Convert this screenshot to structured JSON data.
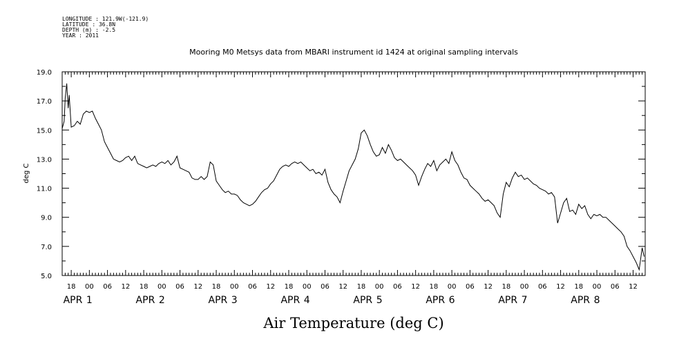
{
  "header": {
    "meta_lines": [
      "LONGITUDE : 121.9W(-121.9)",
      "LATITUDE : 36.8N",
      "DEPTH (m) : -2.5",
      "YEAR : 2011"
    ]
  },
  "chart_data": {
    "type": "line",
    "title": "Mooring M0 Metsys data from MBARI instrument id 1424 at original sampling intervals",
    "xlabel": "Air Temperature (deg C)",
    "ylabel": "deg C",
    "ylim": [
      5.0,
      19.0
    ],
    "yticks": [
      "5.0",
      "7.0",
      "9.0",
      "11.0",
      "13.0",
      "15.0",
      "17.0",
      "19.0"
    ],
    "xlim": [
      "2011-03-31T15:00",
      "2011-04-08T16:00"
    ],
    "hour_ticks": [
      {
        "t": "2011-03-31T18:00",
        "label": "18"
      },
      {
        "t": "2011-04-01T00:00",
        "label": "00"
      },
      {
        "t": "2011-04-01T06:00",
        "label": "06"
      },
      {
        "t": "2011-04-01T12:00",
        "label": "12"
      },
      {
        "t": "2011-04-01T18:00",
        "label": "18"
      },
      {
        "t": "2011-04-02T00:00",
        "label": "00"
      },
      {
        "t": "2011-04-02T06:00",
        "label": "06"
      },
      {
        "t": "2011-04-02T12:00",
        "label": "12"
      },
      {
        "t": "2011-04-02T18:00",
        "label": "18"
      },
      {
        "t": "2011-04-03T00:00",
        "label": "00"
      },
      {
        "t": "2011-04-03T06:00",
        "label": "06"
      },
      {
        "t": "2011-04-03T12:00",
        "label": "12"
      },
      {
        "t": "2011-04-03T18:00",
        "label": "18"
      },
      {
        "t": "2011-04-04T00:00",
        "label": "00"
      },
      {
        "t": "2011-04-04T06:00",
        "label": "06"
      },
      {
        "t": "2011-04-04T12:00",
        "label": "12"
      },
      {
        "t": "2011-04-04T18:00",
        "label": "18"
      },
      {
        "t": "2011-04-05T00:00",
        "label": "00"
      },
      {
        "t": "2011-04-05T06:00",
        "label": "06"
      },
      {
        "t": "2011-04-05T12:00",
        "label": "12"
      },
      {
        "t": "2011-04-05T18:00",
        "label": "18"
      },
      {
        "t": "2011-04-06T00:00",
        "label": "00"
      },
      {
        "t": "2011-04-06T06:00",
        "label": "06"
      },
      {
        "t": "2011-04-06T12:00",
        "label": "12"
      },
      {
        "t": "2011-04-06T18:00",
        "label": "18"
      },
      {
        "t": "2011-04-07T00:00",
        "label": "00"
      },
      {
        "t": "2011-04-07T06:00",
        "label": "06"
      },
      {
        "t": "2011-04-07T12:00",
        "label": "12"
      },
      {
        "t": "2011-04-07T18:00",
        "label": "18"
      },
      {
        "t": "2011-04-08T00:00",
        "label": "00"
      },
      {
        "t": "2011-04-08T06:00",
        "label": "06"
      },
      {
        "t": "2011-04-08T12:00",
        "label": "12"
      }
    ],
    "day_labels": [
      {
        "t": "2011-04-01T00:00",
        "month": "APR",
        "day": "1"
      },
      {
        "t": "2011-04-02T00:00",
        "month": "APR",
        "day": "2"
      },
      {
        "t": "2011-04-03T00:00",
        "month": "APR",
        "day": "3"
      },
      {
        "t": "2011-04-04T00:00",
        "month": "APR",
        "day": "4"
      },
      {
        "t": "2011-04-05T00:00",
        "month": "APR",
        "day": "5"
      },
      {
        "t": "2011-04-06T00:00",
        "month": "APR",
        "day": "6"
      },
      {
        "t": "2011-04-07T00:00",
        "month": "APR",
        "day": "7"
      },
      {
        "t": "2011-04-08T00:00",
        "month": "APR",
        "day": "8"
      }
    ],
    "series": [
      {
        "color": "#000000",
        "points": [
          [
            "2011-03-31T15:00",
            15.1
          ],
          [
            "2011-03-31T15:40",
            15.6
          ],
          [
            "2011-03-31T16:00",
            17.2
          ],
          [
            "2011-03-31T16:30",
            18.2
          ],
          [
            "2011-03-31T17:00",
            16.5
          ],
          [
            "2011-03-31T17:20",
            17.4
          ],
          [
            "2011-03-31T18:00",
            15.2
          ],
          [
            "2011-03-31T19:00",
            15.3
          ],
          [
            "2011-03-31T20:00",
            15.6
          ],
          [
            "2011-03-31T21:00",
            15.4
          ],
          [
            "2011-03-31T22:00",
            16.1
          ],
          [
            "2011-03-31T23:00",
            16.3
          ],
          [
            "2011-04-01T00:00",
            16.2
          ],
          [
            "2011-04-01T01:00",
            16.3
          ],
          [
            "2011-04-01T02:00",
            15.8
          ],
          [
            "2011-04-01T03:00",
            15.4
          ],
          [
            "2011-04-01T04:00",
            15.0
          ],
          [
            "2011-04-01T05:00",
            14.2
          ],
          [
            "2011-04-01T06:00",
            13.8
          ],
          [
            "2011-04-01T07:00",
            13.4
          ],
          [
            "2011-04-01T08:00",
            13.0
          ],
          [
            "2011-04-01T09:00",
            12.9
          ],
          [
            "2011-04-01T10:00",
            12.8
          ],
          [
            "2011-04-01T11:00",
            12.9
          ],
          [
            "2011-04-01T12:00",
            13.1
          ],
          [
            "2011-04-01T13:00",
            13.2
          ],
          [
            "2011-04-01T14:00",
            12.9
          ],
          [
            "2011-04-01T15:00",
            13.2
          ],
          [
            "2011-04-01T16:00",
            12.7
          ],
          [
            "2011-04-01T17:00",
            12.6
          ],
          [
            "2011-04-01T18:00",
            12.5
          ],
          [
            "2011-04-01T19:00",
            12.4
          ],
          [
            "2011-04-01T20:00",
            12.5
          ],
          [
            "2011-04-01T21:00",
            12.6
          ],
          [
            "2011-04-01T22:00",
            12.5
          ],
          [
            "2011-04-01T23:00",
            12.7
          ],
          [
            "2011-04-02T00:00",
            12.8
          ],
          [
            "2011-04-02T01:00",
            12.7
          ],
          [
            "2011-04-02T02:00",
            12.9
          ],
          [
            "2011-04-02T03:00",
            12.6
          ],
          [
            "2011-04-02T04:00",
            12.8
          ],
          [
            "2011-04-02T05:00",
            13.2
          ],
          [
            "2011-04-02T06:00",
            12.4
          ],
          [
            "2011-04-02T07:00",
            12.3
          ],
          [
            "2011-04-02T08:00",
            12.2
          ],
          [
            "2011-04-02T09:00",
            12.1
          ],
          [
            "2011-04-02T10:00",
            11.7
          ],
          [
            "2011-04-02T11:00",
            11.6
          ],
          [
            "2011-04-02T12:00",
            11.6
          ],
          [
            "2011-04-02T13:00",
            11.8
          ],
          [
            "2011-04-02T14:00",
            11.6
          ],
          [
            "2011-04-02T15:00",
            11.8
          ],
          [
            "2011-04-02T16:00",
            12.8
          ],
          [
            "2011-04-02T17:00",
            12.6
          ],
          [
            "2011-04-02T18:00",
            11.5
          ],
          [
            "2011-04-02T19:00",
            11.2
          ],
          [
            "2011-04-02T20:00",
            10.9
          ],
          [
            "2011-04-02T21:00",
            10.7
          ],
          [
            "2011-04-02T22:00",
            10.8
          ],
          [
            "2011-04-02T23:00",
            10.6
          ],
          [
            "2011-04-03T00:00",
            10.6
          ],
          [
            "2011-04-03T01:00",
            10.5
          ],
          [
            "2011-04-03T02:00",
            10.2
          ],
          [
            "2011-04-03T03:00",
            10.0
          ],
          [
            "2011-04-03T04:00",
            9.9
          ],
          [
            "2011-04-03T05:00",
            9.8
          ],
          [
            "2011-04-03T06:00",
            9.9
          ],
          [
            "2011-04-03T07:00",
            10.1
          ],
          [
            "2011-04-03T08:00",
            10.4
          ],
          [
            "2011-04-03T09:00",
            10.7
          ],
          [
            "2011-04-03T10:00",
            10.9
          ],
          [
            "2011-04-03T11:00",
            11.0
          ],
          [
            "2011-04-03T12:00",
            11.3
          ],
          [
            "2011-04-03T13:00",
            11.5
          ],
          [
            "2011-04-03T14:00",
            11.9
          ],
          [
            "2011-04-03T15:00",
            12.3
          ],
          [
            "2011-04-03T16:00",
            12.5
          ],
          [
            "2011-04-03T17:00",
            12.6
          ],
          [
            "2011-04-03T18:00",
            12.5
          ],
          [
            "2011-04-03T19:00",
            12.7
          ],
          [
            "2011-04-03T20:00",
            12.8
          ],
          [
            "2011-04-03T21:00",
            12.7
          ],
          [
            "2011-04-03T22:00",
            12.8
          ],
          [
            "2011-04-03T23:00",
            12.6
          ],
          [
            "2011-04-04T00:00",
            12.4
          ],
          [
            "2011-04-04T01:00",
            12.2
          ],
          [
            "2011-04-04T02:00",
            12.3
          ],
          [
            "2011-04-04T03:00",
            12.0
          ],
          [
            "2011-04-04T04:00",
            12.1
          ],
          [
            "2011-04-04T05:00",
            11.9
          ],
          [
            "2011-04-04T06:00",
            12.3
          ],
          [
            "2011-04-04T07:00",
            11.4
          ],
          [
            "2011-04-04T08:00",
            10.9
          ],
          [
            "2011-04-04T09:00",
            10.6
          ],
          [
            "2011-04-04T10:00",
            10.4
          ],
          [
            "2011-04-04T11:00",
            10.0
          ],
          [
            "2011-04-04T12:00",
            10.8
          ],
          [
            "2011-04-04T13:00",
            11.5
          ],
          [
            "2011-04-04T14:00",
            12.2
          ],
          [
            "2011-04-04T15:00",
            12.6
          ],
          [
            "2011-04-04T16:00",
            13.0
          ],
          [
            "2011-04-04T17:00",
            13.7
          ],
          [
            "2011-04-04T18:00",
            14.8
          ],
          [
            "2011-04-04T19:00",
            15.0
          ],
          [
            "2011-04-04T20:00",
            14.6
          ],
          [
            "2011-04-04T21:00",
            14.0
          ],
          [
            "2011-04-04T22:00",
            13.5
          ],
          [
            "2011-04-04T23:00",
            13.2
          ],
          [
            "2011-04-05T00:00",
            13.3
          ],
          [
            "2011-04-05T01:00",
            13.8
          ],
          [
            "2011-04-05T02:00",
            13.4
          ],
          [
            "2011-04-05T03:00",
            14.0
          ],
          [
            "2011-04-05T04:00",
            13.6
          ],
          [
            "2011-04-05T05:00",
            13.1
          ],
          [
            "2011-04-05T06:00",
            12.9
          ],
          [
            "2011-04-05T07:00",
            13.0
          ],
          [
            "2011-04-05T08:00",
            12.8
          ],
          [
            "2011-04-05T09:00",
            12.6
          ],
          [
            "2011-04-05T10:00",
            12.4
          ],
          [
            "2011-04-05T11:00",
            12.2
          ],
          [
            "2011-04-05T12:00",
            11.9
          ],
          [
            "2011-04-05T13:00",
            11.2
          ],
          [
            "2011-04-05T14:00",
            11.8
          ],
          [
            "2011-04-05T15:00",
            12.3
          ],
          [
            "2011-04-05T16:00",
            12.7
          ],
          [
            "2011-04-05T17:00",
            12.5
          ],
          [
            "2011-04-05T18:00",
            12.9
          ],
          [
            "2011-04-05T19:00",
            12.2
          ],
          [
            "2011-04-05T20:00",
            12.6
          ],
          [
            "2011-04-05T21:00",
            12.8
          ],
          [
            "2011-04-05T22:00",
            13.0
          ],
          [
            "2011-04-05T23:00",
            12.7
          ],
          [
            "2011-04-06T00:00",
            13.5
          ],
          [
            "2011-04-06T01:00",
            12.9
          ],
          [
            "2011-04-06T02:00",
            12.6
          ],
          [
            "2011-04-06T03:00",
            12.1
          ],
          [
            "2011-04-06T04:00",
            11.7
          ],
          [
            "2011-04-06T05:00",
            11.6
          ],
          [
            "2011-04-06T06:00",
            11.2
          ],
          [
            "2011-04-06T07:00",
            11.0
          ],
          [
            "2011-04-06T08:00",
            10.8
          ],
          [
            "2011-04-06T09:00",
            10.6
          ],
          [
            "2011-04-06T10:00",
            10.3
          ],
          [
            "2011-04-06T11:00",
            10.1
          ],
          [
            "2011-04-06T12:00",
            10.2
          ],
          [
            "2011-04-06T13:00",
            10.0
          ],
          [
            "2011-04-06T14:00",
            9.8
          ],
          [
            "2011-04-06T15:00",
            9.3
          ],
          [
            "2011-04-06T16:00",
            9.0
          ],
          [
            "2011-04-06T17:00",
            10.6
          ],
          [
            "2011-04-06T18:00",
            11.4
          ],
          [
            "2011-04-06T19:00",
            11.1
          ],
          [
            "2011-04-06T20:00",
            11.7
          ],
          [
            "2011-04-06T21:00",
            12.1
          ],
          [
            "2011-04-06T22:00",
            11.8
          ],
          [
            "2011-04-06T23:00",
            11.9
          ],
          [
            "2011-04-07T00:00",
            11.6
          ],
          [
            "2011-04-07T01:00",
            11.7
          ],
          [
            "2011-04-07T02:00",
            11.5
          ],
          [
            "2011-04-07T03:00",
            11.3
          ],
          [
            "2011-04-07T04:00",
            11.2
          ],
          [
            "2011-04-07T05:00",
            11.0
          ],
          [
            "2011-04-07T06:00",
            10.9
          ],
          [
            "2011-04-07T07:00",
            10.8
          ],
          [
            "2011-04-07T08:00",
            10.6
          ],
          [
            "2011-04-07T09:00",
            10.7
          ],
          [
            "2011-04-07T10:00",
            10.4
          ],
          [
            "2011-04-07T11:00",
            8.6
          ],
          [
            "2011-04-07T12:00",
            9.3
          ],
          [
            "2011-04-07T13:00",
            10.0
          ],
          [
            "2011-04-07T14:00",
            10.3
          ],
          [
            "2011-04-07T15:00",
            9.4
          ],
          [
            "2011-04-07T16:00",
            9.5
          ],
          [
            "2011-04-07T17:00",
            9.2
          ],
          [
            "2011-04-07T18:00",
            9.9
          ],
          [
            "2011-04-07T19:00",
            9.6
          ],
          [
            "2011-04-07T20:00",
            9.8
          ],
          [
            "2011-04-07T21:00",
            9.2
          ],
          [
            "2011-04-07T22:00",
            8.9
          ],
          [
            "2011-04-07T23:00",
            9.2
          ],
          [
            "2011-04-08T00:00",
            9.1
          ],
          [
            "2011-04-08T01:00",
            9.2
          ],
          [
            "2011-04-08T02:00",
            9.0
          ],
          [
            "2011-04-08T03:00",
            9.0
          ],
          [
            "2011-04-08T04:00",
            8.8
          ],
          [
            "2011-04-08T05:00",
            8.6
          ],
          [
            "2011-04-08T06:00",
            8.4
          ],
          [
            "2011-04-08T07:00",
            8.2
          ],
          [
            "2011-04-08T08:00",
            8.0
          ],
          [
            "2011-04-08T09:00",
            7.7
          ],
          [
            "2011-04-08T10:00",
            7.0
          ],
          [
            "2011-04-08T11:00",
            6.7
          ],
          [
            "2011-04-08T12:00",
            6.3
          ],
          [
            "2011-04-08T13:00",
            5.9
          ],
          [
            "2011-04-08T14:00",
            5.4
          ],
          [
            "2011-04-08T15:00",
            6.9
          ],
          [
            "2011-04-08T15:40",
            6.3
          ]
        ]
      }
    ]
  }
}
